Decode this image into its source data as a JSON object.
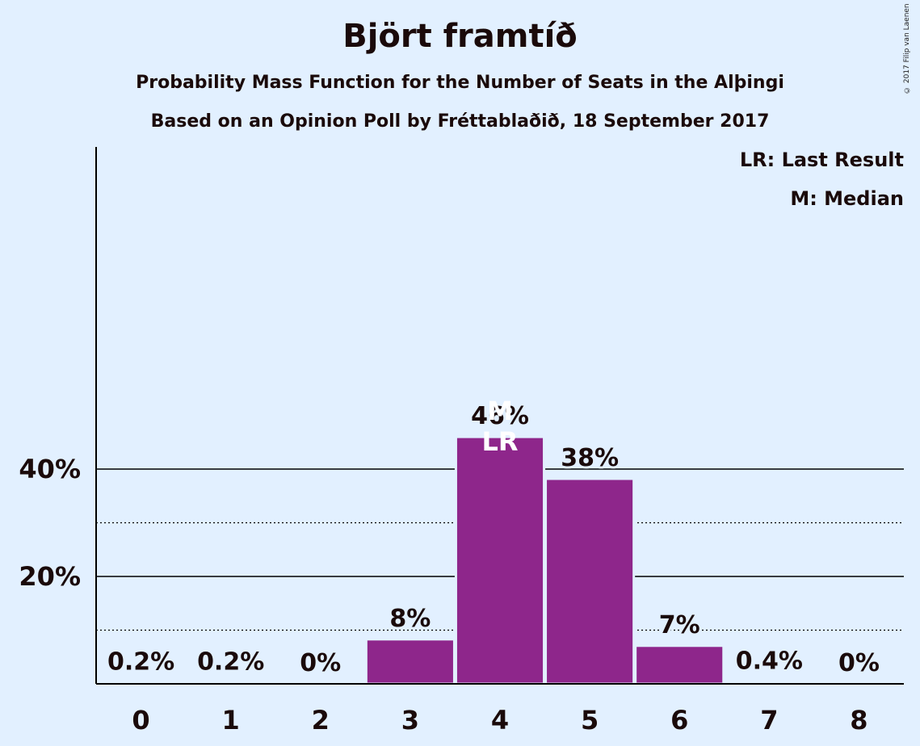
{
  "chart_data": {
    "type": "bar",
    "title": "Björt framtíð",
    "subtitle": "Probability Mass Function for the Number of Seats in the Alþingi",
    "subtitle2": "Based on an Opinion Poll by Fréttablaðið, 18 September 2017",
    "copyright": "© 2017 Filip van Laenen",
    "legend": [
      "LR: Last Result",
      "M: Median"
    ],
    "categories": [
      "0",
      "1",
      "2",
      "3",
      "4",
      "5",
      "6",
      "7",
      "8"
    ],
    "values": [
      0.2,
      0.2,
      0,
      8.3,
      46,
      38.2,
      7.1,
      0.4,
      0
    ],
    "value_labels": [
      "0.2%",
      "0.2%",
      "0%",
      "8%",
      "46%",
      "38%",
      "7%",
      "0.4%",
      "0%"
    ],
    "y_ticks": [
      {
        "value": 20,
        "label": "20%"
      },
      {
        "value": 40,
        "label": "40%"
      }
    ],
    "minor_gridlines": [
      10,
      30
    ],
    "ylim": [
      0,
      50
    ],
    "bar_color": "#8e268b",
    "median_index": 4,
    "median_label": "M",
    "last_result_index": 4,
    "last_result_label": "LR",
    "xlabel": "",
    "ylabel": ""
  }
}
